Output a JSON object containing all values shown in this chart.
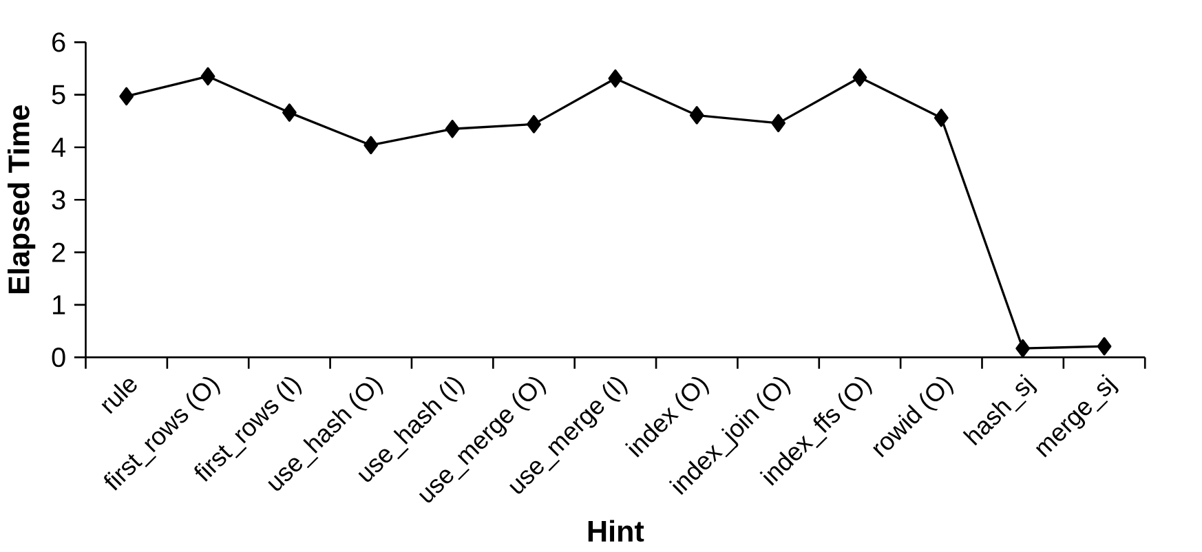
{
  "chart_data": {
    "type": "line",
    "xlabel": "Hint",
    "ylabel": "Elapsed Time",
    "categories": [
      "rule",
      "first_rows (O)",
      "first_rows (I)",
      "use_hash (O)",
      "use_hash (I)",
      "use_merge (O)",
      "use_merge (I)",
      "index (O)",
      "index_join (O)",
      "index_ffs (O)",
      "rowid (O)",
      "hash_sj",
      "merge_sj"
    ],
    "series": [
      {
        "color": "#000000",
        "values": [
          4.97,
          5.35,
          4.66,
          4.04,
          4.35,
          4.44,
          5.31,
          4.61,
          4.46,
          5.33,
          4.56,
          0.17,
          0.21
        ]
      }
    ],
    "ylim": [
      0,
      6
    ],
    "yticks": [
      0,
      1,
      2,
      3,
      4,
      5,
      6
    ],
    "marker": "diamond",
    "line_style": "solid"
  }
}
